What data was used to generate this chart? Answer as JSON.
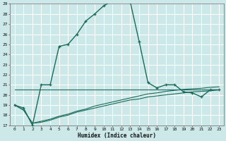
{
  "xlabel": "Humidex (Indice chaleur)",
  "bg_color": "#cce8e8",
  "grid_color": "#ffffff",
  "line_color": "#1a6b5a",
  "xlim": [
    -0.5,
    23.5
  ],
  "ylim": [
    17,
    29
  ],
  "yticks": [
    17,
    18,
    19,
    20,
    21,
    22,
    23,
    24,
    25,
    26,
    27,
    28,
    29
  ],
  "xticks": [
    0,
    1,
    2,
    3,
    4,
    5,
    6,
    7,
    8,
    9,
    10,
    11,
    12,
    13,
    14,
    15,
    16,
    17,
    18,
    19,
    20,
    21,
    22,
    23
  ],
  "xtick_labels": [
    "0",
    "1",
    "2",
    "3",
    "4",
    "5",
    "6",
    "7",
    "8",
    "9",
    "10",
    "11",
    "12",
    "13",
    "14",
    "15",
    "16",
    "17",
    "18",
    "19",
    "20",
    "21",
    "22",
    "23"
  ],
  "curve1_x": [
    0,
    1,
    2,
    3,
    4,
    5,
    6,
    7,
    8,
    9,
    10,
    11,
    12,
    13,
    14,
    15,
    16,
    17,
    18,
    19,
    20,
    21,
    22,
    23
  ],
  "curve1_y": [
    19.0,
    18.7,
    17.0,
    21.0,
    21.0,
    24.8,
    25.0,
    26.0,
    27.3,
    28.0,
    28.8,
    29.3,
    29.3,
    29.2,
    25.3,
    21.2,
    20.7,
    21.0,
    21.0,
    20.3,
    20.2,
    19.8,
    20.5,
    20.5
  ],
  "curve_flat_x": [
    0,
    1,
    2,
    3,
    4,
    5,
    6,
    7,
    8,
    9,
    10,
    11,
    12,
    13,
    14,
    15,
    16,
    17,
    18,
    19,
    20,
    21,
    22,
    23
  ],
  "curve_flat_y": [
    20.5,
    20.5,
    20.5,
    20.5,
    20.5,
    20.5,
    20.5,
    20.5,
    20.5,
    20.5,
    20.5,
    20.5,
    20.5,
    20.5,
    20.5,
    20.5,
    20.5,
    20.5,
    20.5,
    20.5,
    20.5,
    20.5,
    20.5,
    20.5
  ],
  "curve_low1_x": [
    0,
    1,
    2,
    3,
    4,
    5,
    6,
    7,
    8,
    9,
    10,
    11,
    12,
    13,
    14,
    15,
    16,
    17,
    18,
    19,
    20,
    21,
    22,
    23
  ],
  "curve_low1_y": [
    19.0,
    18.5,
    17.2,
    17.3,
    17.5,
    17.8,
    18.0,
    18.3,
    18.5,
    18.7,
    18.9,
    19.1,
    19.3,
    19.5,
    19.6,
    19.8,
    19.9,
    20.0,
    20.1,
    20.2,
    20.3,
    20.35,
    20.4,
    20.5
  ],
  "curve_low2_x": [
    0,
    1,
    2,
    3,
    4,
    5,
    6,
    7,
    8,
    9,
    10,
    11,
    12,
    13,
    14,
    15,
    16,
    17,
    18,
    19,
    20,
    21,
    22,
    23
  ],
  "curve_low2_y": [
    19.0,
    18.5,
    17.2,
    17.4,
    17.6,
    17.9,
    18.1,
    18.4,
    18.6,
    18.9,
    19.1,
    19.3,
    19.5,
    19.7,
    19.9,
    20.1,
    20.2,
    20.35,
    20.45,
    20.55,
    20.6,
    20.65,
    20.75,
    20.8
  ]
}
